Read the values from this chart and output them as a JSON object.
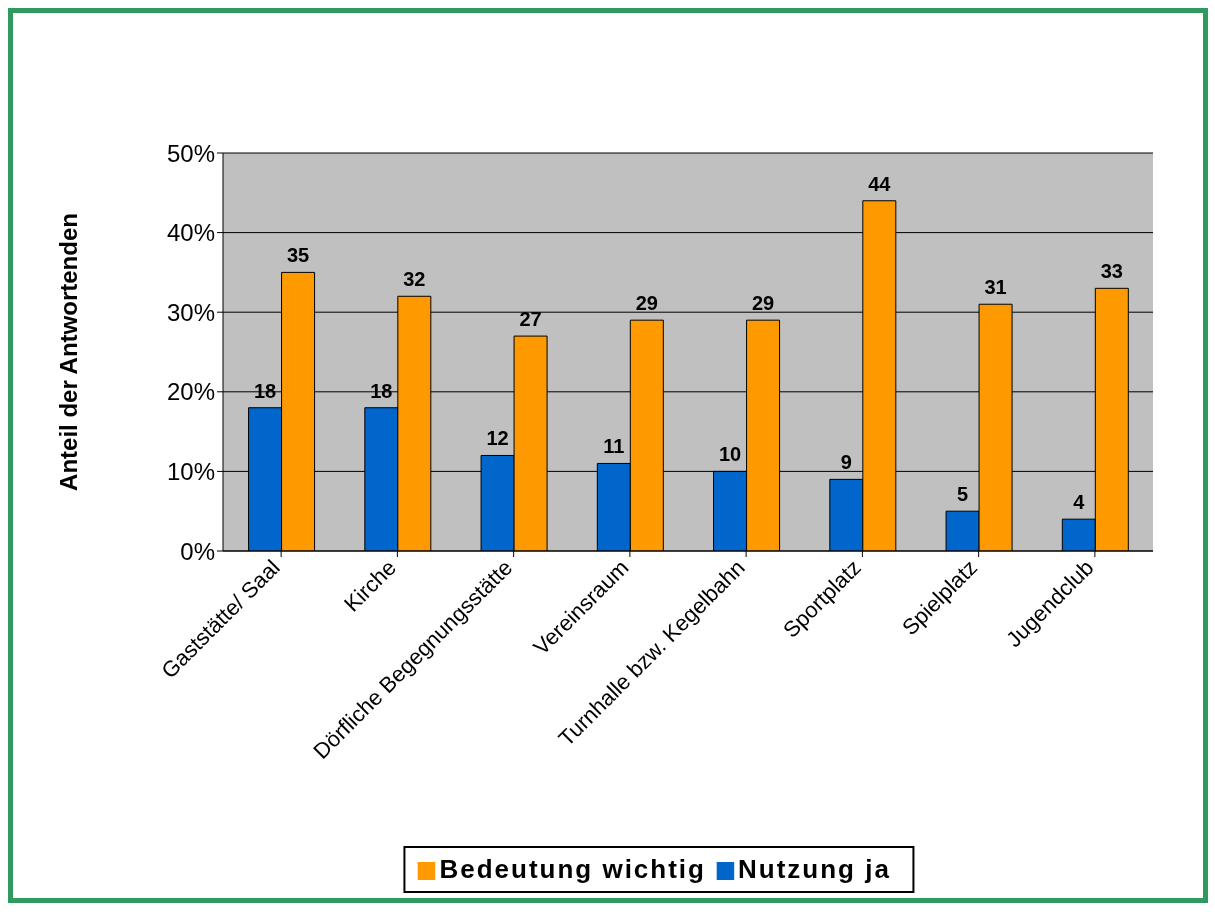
{
  "chart_data": {
    "type": "bar",
    "ylabel": "Anteil der Antwortenden",
    "categories": [
      "Gaststätte/ Saal",
      "Kirche",
      "Dörfliche Begegnungsstätte",
      "Vereinsraum",
      "Turnhalle bzw. Kegelbahn",
      "Sportplatz",
      "Spielplatz",
      "Jugendclub"
    ],
    "series": [
      {
        "name": "Nutzung ja",
        "color": "#0066cc",
        "values": [
          18,
          18,
          12,
          11,
          10,
          9,
          5,
          4
        ]
      },
      {
        "name": "Bedeutung wichtig",
        "color": "#ff9900",
        "values": [
          35,
          32,
          27,
          29,
          29,
          44,
          31,
          33
        ]
      }
    ],
    "ylim": [
      0,
      50
    ],
    "yticks": [
      {
        "value": 0,
        "label": "0%"
      },
      {
        "value": 10,
        "label": "10%"
      },
      {
        "value": 20,
        "label": "20%"
      },
      {
        "value": 30,
        "label": "30%"
      },
      {
        "value": 40,
        "label": "40%"
      },
      {
        "value": 50,
        "label": "50%"
      }
    ],
    "grid": "y",
    "legend": "bottom",
    "data_labels": true
  }
}
